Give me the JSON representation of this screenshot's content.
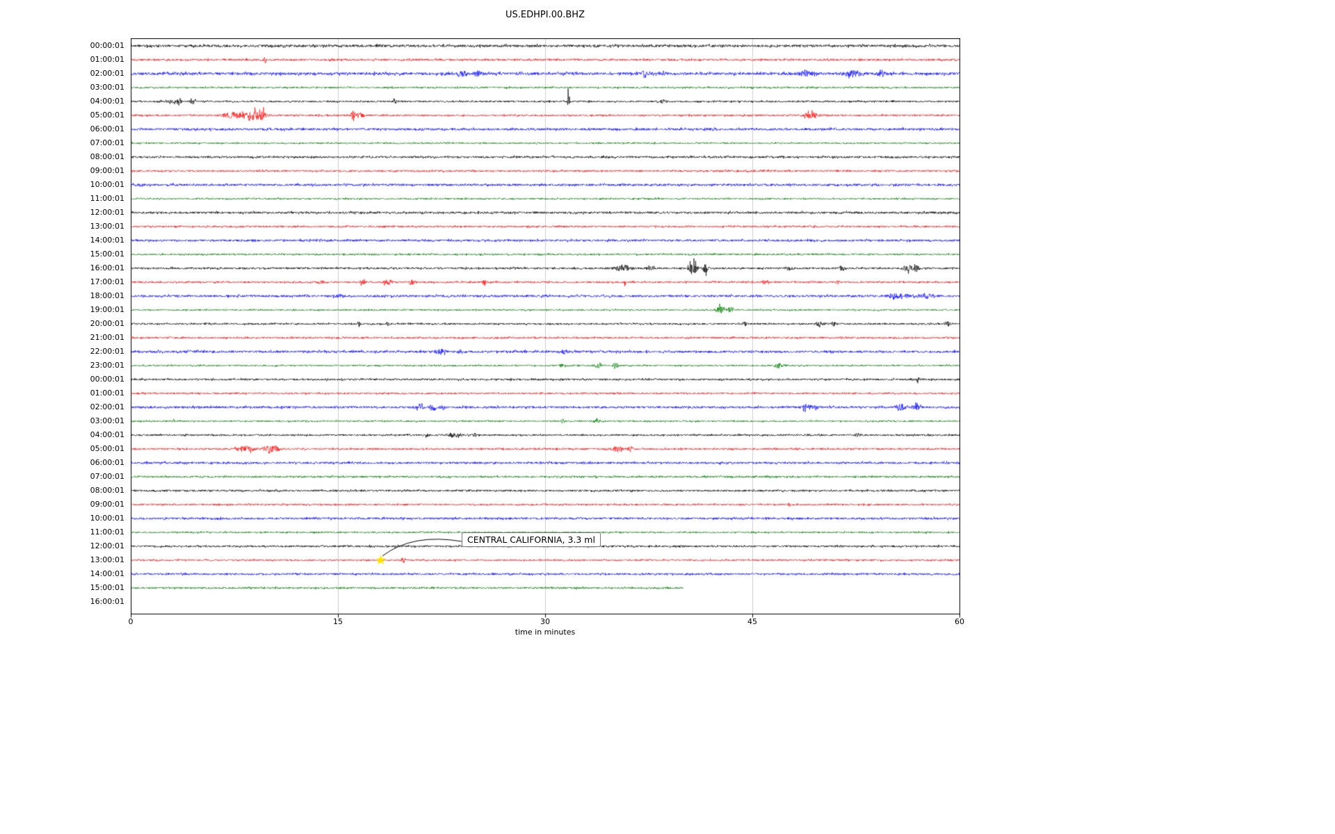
{
  "chart_data": {
    "type": "line",
    "title": "US.EDHPI.00.BHZ",
    "xlabel": "time in minutes",
    "xlim": [
      0,
      60
    ],
    "xticks": [
      0,
      15,
      30,
      45,
      60
    ],
    "grid": "vertical-light-gray-at-15-30-45",
    "legend": "none",
    "color_cycle": [
      "#000000",
      "#ff0000",
      "#0000ff",
      "#008000"
    ],
    "annotation": {
      "text": "CENTRAL CALIFORNIA, 3.3 ml",
      "row_label": "13:00:01",
      "row_index": 37,
      "x_minutes": 18.1,
      "marker": "star",
      "marker_color": "#ffe400"
    },
    "rows": [
      {
        "label": "00:00:01",
        "color": "#000000",
        "amp": 1.7,
        "end": 60,
        "events": []
      },
      {
        "label": "01:00:01",
        "color": "#ff0000",
        "amp": 1.3,
        "end": 60,
        "events": [
          [
            9.7,
            5,
            0.12
          ]
        ]
      },
      {
        "label": "02:00:01",
        "color": "#0000ff",
        "amp": 1.8,
        "end": 60,
        "events": [
          [
            24.0,
            3,
            0.35
          ],
          [
            25.2,
            3.5,
            0.25
          ],
          [
            37.2,
            6,
            0.15
          ],
          [
            38.6,
            3,
            0.15
          ],
          [
            48.9,
            3,
            0.5
          ],
          [
            52.3,
            3.5,
            0.7
          ],
          [
            54.3,
            4,
            0.25
          ]
        ]
      },
      {
        "label": "03:00:01",
        "color": "#008000",
        "amp": 1.2,
        "end": 60,
        "events": []
      },
      {
        "label": "04:00:01",
        "color": "#000000",
        "amp": 1.2,
        "end": 60,
        "events": [
          [
            2.9,
            3,
            0.4
          ],
          [
            3.5,
            4.5,
            0.15
          ],
          [
            4.5,
            3,
            0.2
          ],
          [
            19.1,
            4,
            0.12
          ],
          [
            31.7,
            14,
            0.07
          ],
          [
            38.5,
            1.5,
            0.4
          ]
        ]
      },
      {
        "label": "05:00:01",
        "color": "#ff0000",
        "amp": 1.2,
        "end": 60,
        "events": [
          [
            7.4,
            4,
            0.7
          ],
          [
            8.8,
            7,
            0.45
          ],
          [
            9.5,
            6,
            0.35
          ],
          [
            16.1,
            6,
            0.12
          ],
          [
            16.6,
            3,
            0.3
          ],
          [
            49.2,
            3.5,
            0.5
          ]
        ]
      },
      {
        "label": "06:00:01",
        "color": "#0000ff",
        "amp": 1.5,
        "end": 60,
        "events": []
      },
      {
        "label": "07:00:01",
        "color": "#008000",
        "amp": 1.1,
        "end": 60,
        "events": []
      },
      {
        "label": "08:00:01",
        "color": "#000000",
        "amp": 1.4,
        "end": 60,
        "events": []
      },
      {
        "label": "09:00:01",
        "color": "#ff0000",
        "amp": 1.2,
        "end": 60,
        "events": []
      },
      {
        "label": "10:00:01",
        "color": "#0000ff",
        "amp": 1.5,
        "end": 60,
        "events": []
      },
      {
        "label": "11:00:01",
        "color": "#008000",
        "amp": 1.1,
        "end": 60,
        "events": []
      },
      {
        "label": "12:00:01",
        "color": "#000000",
        "amp": 1.5,
        "end": 60,
        "events": []
      },
      {
        "label": "13:00:01",
        "color": "#ff0000",
        "amp": 1.2,
        "end": 60,
        "events": []
      },
      {
        "label": "14:00:01",
        "color": "#0000ff",
        "amp": 1.4,
        "end": 60,
        "events": []
      },
      {
        "label": "15:00:01",
        "color": "#008000",
        "amp": 1.2,
        "end": 60,
        "events": []
      },
      {
        "label": "16:00:01",
        "color": "#000000",
        "amp": 1.3,
        "end": 60,
        "events": [
          [
            35.5,
            3,
            0.5
          ],
          [
            35.9,
            5,
            0.1
          ],
          [
            37.6,
            3,
            0.25
          ],
          [
            40.7,
            8,
            0.3
          ],
          [
            41.6,
            6,
            0.18
          ],
          [
            47.6,
            2,
            0.3
          ],
          [
            51.5,
            3,
            0.25
          ],
          [
            56.3,
            4,
            0.4
          ],
          [
            56.9,
            4,
            0.2
          ]
        ]
      },
      {
        "label": "17:00:01",
        "color": "#ff0000",
        "amp": 1.2,
        "end": 60,
        "events": [
          [
            13.8,
            1.5,
            0.3
          ],
          [
            16.8,
            3,
            0.2
          ],
          [
            18.6,
            3,
            0.35
          ],
          [
            20.4,
            3,
            0.25
          ],
          [
            25.6,
            3,
            0.12
          ],
          [
            35.8,
            6,
            0.08
          ],
          [
            45.9,
            2,
            0.2
          ],
          [
            51.2,
            2.5,
            0.12
          ]
        ]
      },
      {
        "label": "18:00:01",
        "color": "#0000ff",
        "amp": 1.5,
        "end": 60,
        "events": [
          [
            15.0,
            2,
            0.3
          ],
          [
            55.6,
            3,
            0.7
          ],
          [
            57.6,
            3,
            0.35
          ]
        ]
      },
      {
        "label": "19:00:01",
        "color": "#008000",
        "amp": 1.1,
        "end": 60,
        "events": [
          [
            42.7,
            5,
            0.3
          ],
          [
            43.4,
            4,
            0.18
          ]
        ]
      },
      {
        "label": "20:00:01",
        "color": "#000000",
        "amp": 1.2,
        "end": 60,
        "events": [
          [
            16.5,
            3,
            0.1
          ],
          [
            18.6,
            3,
            0.1
          ],
          [
            44.5,
            3,
            0.12
          ],
          [
            49.8,
            3,
            0.25
          ],
          [
            50.9,
            2.5,
            0.18
          ],
          [
            59.1,
            3,
            0.2
          ]
        ]
      },
      {
        "label": "21:00:01",
        "color": "#ff0000",
        "amp": 1.2,
        "end": 60,
        "events": []
      },
      {
        "label": "22:00:01",
        "color": "#0000ff",
        "amp": 1.5,
        "end": 60,
        "events": [
          [
            22.4,
            3,
            0.35
          ],
          [
            23.9,
            2,
            0.25
          ],
          [
            31.4,
            3,
            0.18
          ]
        ]
      },
      {
        "label": "23:00:01",
        "color": "#008000",
        "amp": 1.1,
        "end": 60,
        "events": [
          [
            31.2,
            2,
            0.2
          ],
          [
            33.8,
            3,
            0.25
          ],
          [
            35.1,
            3,
            0.18
          ],
          [
            46.9,
            3,
            0.35
          ]
        ]
      },
      {
        "label": "00:00:01",
        "color": "#000000",
        "amp": 1.3,
        "end": 60,
        "events": [
          [
            57.0,
            5,
            0.1
          ]
        ]
      },
      {
        "label": "01:00:01",
        "color": "#ff0000",
        "amp": 1.1,
        "end": 60,
        "events": []
      },
      {
        "label": "02:00:01",
        "color": "#0000ff",
        "amp": 1.5,
        "end": 60,
        "events": [
          [
            20.9,
            4,
            0.25
          ],
          [
            21.9,
            4,
            0.25
          ],
          [
            22.6,
            3,
            0.18
          ],
          [
            48.9,
            4,
            0.3
          ],
          [
            49.6,
            3,
            0.25
          ],
          [
            55.7,
            4,
            0.35
          ],
          [
            56.9,
            3,
            0.25
          ]
        ]
      },
      {
        "label": "03:00:01",
        "color": "#008000",
        "amp": 1.1,
        "end": 60,
        "events": [
          [
            3.1,
            2.5,
            0.1
          ],
          [
            31.3,
            3,
            0.12
          ],
          [
            33.7,
            2,
            0.25
          ]
        ]
      },
      {
        "label": "04:00:01",
        "color": "#000000",
        "amp": 1.2,
        "end": 60,
        "events": [
          [
            21.4,
            3,
            0.15
          ],
          [
            23.4,
            3,
            0.35
          ],
          [
            24.9,
            2,
            0.18
          ],
          [
            52.6,
            2,
            0.25
          ]
        ]
      },
      {
        "label": "05:00:01",
        "color": "#ff0000",
        "amp": 1.2,
        "end": 60,
        "events": [
          [
            8.3,
            3.5,
            0.6
          ],
          [
            9.9,
            6.5,
            0.3
          ],
          [
            10.5,
            4,
            0.25
          ],
          [
            35.2,
            4,
            0.35
          ],
          [
            36.2,
            3,
            0.18
          ]
        ]
      },
      {
        "label": "06:00:01",
        "color": "#0000ff",
        "amp": 1.4,
        "end": 60,
        "events": []
      },
      {
        "label": "07:00:01",
        "color": "#008000",
        "amp": 1.3,
        "end": 60,
        "events": []
      },
      {
        "label": "08:00:01",
        "color": "#000000",
        "amp": 1.3,
        "end": 60,
        "events": []
      },
      {
        "label": "09:00:01",
        "color": "#ff0000",
        "amp": 1.1,
        "end": 60,
        "events": [
          [
            47.7,
            2,
            0.1
          ]
        ]
      },
      {
        "label": "10:00:01",
        "color": "#0000ff",
        "amp": 1.4,
        "end": 60,
        "events": []
      },
      {
        "label": "11:00:01",
        "color": "#008000",
        "amp": 1.1,
        "end": 60,
        "events": []
      },
      {
        "label": "12:00:01",
        "color": "#000000",
        "amp": 1.3,
        "end": 60,
        "events": []
      },
      {
        "label": "13:00:01",
        "color": "#ff0000",
        "amp": 1.1,
        "end": 60,
        "events": [
          [
            19.7,
            3,
            0.2
          ]
        ]
      },
      {
        "label": "14:00:01",
        "color": "#0000ff",
        "amp": 1.3,
        "end": 60,
        "events": []
      },
      {
        "label": "15:00:01",
        "color": "#008000",
        "amp": 1.3,
        "end": 40,
        "events": []
      },
      {
        "label": "16:00:01",
        "color": null,
        "amp": 0,
        "end": 0,
        "events": []
      }
    ]
  }
}
